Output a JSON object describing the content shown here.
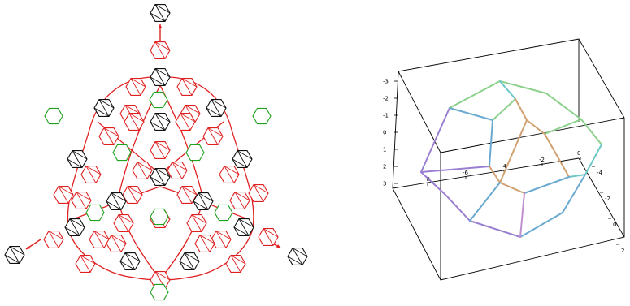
{
  "colors": {
    "red": "#e02020",
    "black": "#111111",
    "green": "#1fa21f",
    "dodecahedron_edges": [
      "#9a7fd0",
      "#6aaad0",
      "#6dc8c8",
      "#8bd08b",
      "#d0a070",
      "#c090d0"
    ]
  },
  "graph": {
    "node_shape": "hexagon",
    "node_types": [
      "red-hexagon",
      "black-hexagon",
      "green-hexagon"
    ],
    "outer_nodes": 3,
    "arrows": 3
  },
  "plot3d": {
    "shape": "dodecahedron",
    "axis_x_ticks": [
      "-8",
      "-6",
      "-4",
      "-2",
      "0"
    ],
    "axis_y_ticks": [
      "-4",
      "-2",
      "0",
      "2"
    ],
    "axis_z_ticks": [
      "-3",
      "-2",
      "-1",
      "0",
      "1",
      "2",
      "3"
    ]
  }
}
